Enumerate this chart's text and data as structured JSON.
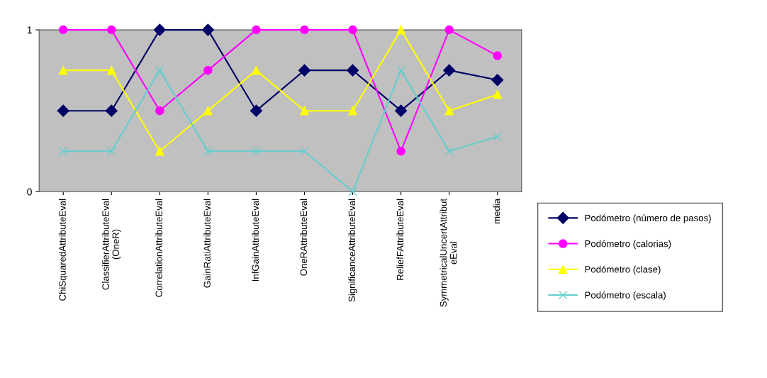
{
  "chart_data": {
    "type": "line",
    "categories": [
      "ChiSquaredAttributeEval",
      "ClassifierAttributeEval\n(OneR)",
      "CorrelationAttributeEval",
      "GainRatiAttributeEval",
      "InfGainAttributeEval",
      "OneRAttributeEval",
      "SignificanceAttributeEval",
      "ReliefFAttributeEval",
      "SymmetricalUncertAttribut\neEval",
      "media"
    ],
    "series": [
      {
        "name": "Podómetro (número de pasos)",
        "color": "#000066",
        "marker": "diamond",
        "values": [
          0.5,
          0.5,
          1,
          1,
          0.5,
          0.75,
          0.75,
          0.5,
          0.75,
          0.69
        ]
      },
      {
        "name": "Podómetro (calorias)",
        "color": "#ff00ff",
        "marker": "circle",
        "values": [
          1,
          1,
          0.5,
          0.75,
          1,
          1,
          1,
          0.25,
          1,
          0.84
        ]
      },
      {
        "name": "Podómetro (clase)",
        "color": "#ffff00",
        "marker": "triangle",
        "values": [
          0.75,
          0.75,
          0.25,
          0.5,
          0.75,
          0.5,
          0.5,
          1,
          0.5,
          0.6
        ]
      },
      {
        "name": "Podómetro (escala)",
        "color": "#66cccc",
        "marker": "cross",
        "values": [
          0.25,
          0.25,
          0.75,
          0.25,
          0.25,
          0.25,
          0,
          0.75,
          0.25,
          0.34
        ]
      }
    ],
    "ylim": [
      0,
      1
    ],
    "yticks": [
      0,
      1
    ],
    "grid": false,
    "legend": "right",
    "line_style": "solid"
  }
}
